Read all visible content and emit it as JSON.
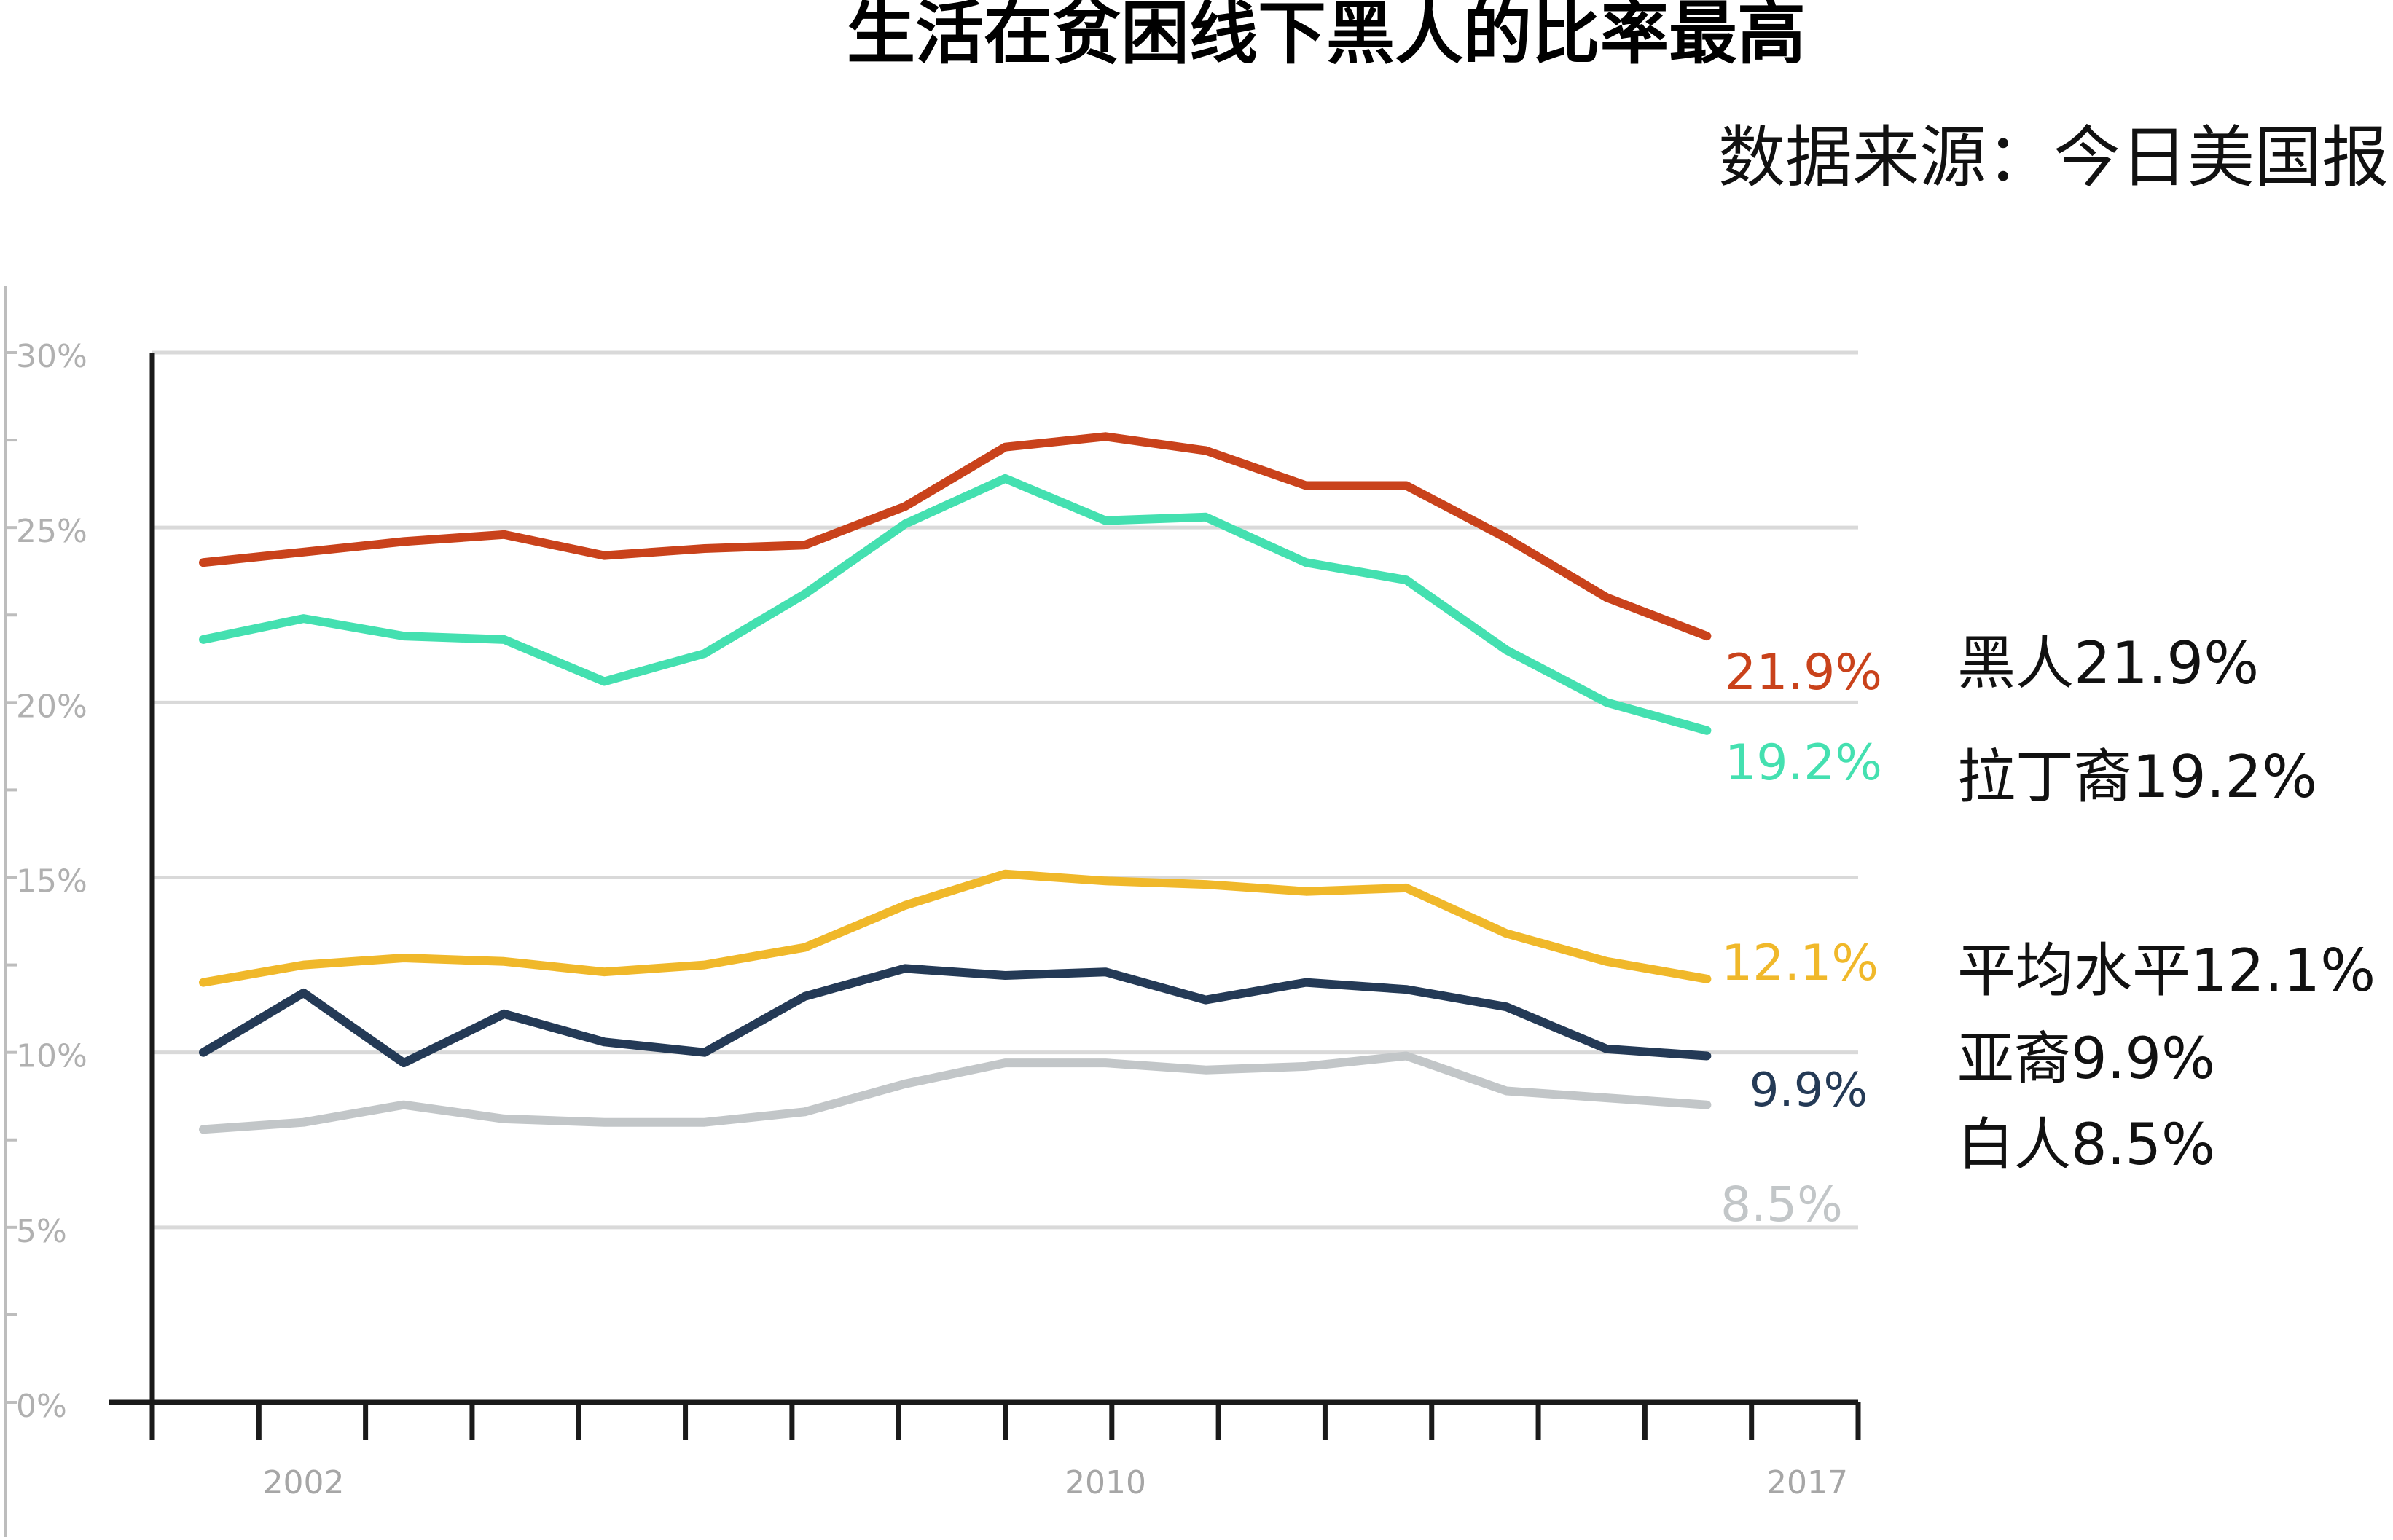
{
  "header": {
    "title": "生活在贫困线下黑人的比率最高",
    "source": "数据来源：今日美国报"
  },
  "chart_data": {
    "type": "line",
    "title": "生活在贫困线下黑人的比率最高",
    "subtitle": "数据来源：今日美国报",
    "xlabel": "",
    "ylabel": "",
    "x": [
      2001,
      2002,
      2003,
      2004,
      2005,
      2006,
      2007,
      2008,
      2009,
      2010,
      2011,
      2012,
      2013,
      2014,
      2015,
      2016,
      2017
    ],
    "xlim": [
      2001,
      2017
    ],
    "ylim": [
      0,
      30
    ],
    "y_ticks": [
      0,
      5,
      10,
      15,
      20,
      25,
      30
    ],
    "y_tick_labels": [
      "0%",
      "5%",
      "10%",
      "15%",
      "20%",
      "25%",
      "30%"
    ],
    "x_tick_labels": [
      {
        "value": 2002,
        "label": "2002"
      },
      {
        "value": 2010,
        "label": "2010"
      },
      {
        "value": 2017,
        "label": "2017"
      }
    ],
    "grid": true,
    "legend": "none",
    "series": [
      {
        "color": "#c9421b",
        "values": [
          24.0,
          24.3,
          24.6,
          24.8,
          24.2,
          24.4,
          24.5,
          25.6,
          27.3,
          27.6,
          27.2,
          26.2,
          26.2,
          24.7,
          23.0,
          21.9,
          21.9
        ],
        "end_label": "21.9%",
        "annotation": "黑人21.9%"
      },
      {
        "color": "#44e0b0",
        "values": [
          21.8,
          22.4,
          21.9,
          21.8,
          20.6,
          21.4,
          23.1,
          25.1,
          26.4,
          25.2,
          25.3,
          24.0,
          23.5,
          21.5,
          20.0,
          19.2,
          19.2
        ],
        "end_label": "19.2%",
        "annotation": "拉丁裔19.2%"
      },
      {
        "color": "#f0b82a",
        "values": [
          12.0,
          12.5,
          12.7,
          12.6,
          12.3,
          12.5,
          13.0,
          14.2,
          15.1,
          14.9,
          14.8,
          14.6,
          14.7,
          13.4,
          12.6,
          12.1,
          12.1
        ],
        "end_label": "12.1%",
        "annotation": "平均水平12.1%"
      },
      {
        "color": "#243a56",
        "values": [
          10.0,
          11.7,
          9.7,
          11.1,
          10.3,
          10.0,
          11.6,
          12.4,
          12.2,
          12.3,
          11.5,
          12.0,
          11.8,
          11.3,
          10.1,
          9.9,
          9.9
        ],
        "end_label": "9.9%",
        "annotation": "亚裔9.9%"
      },
      {
        "color": "#c2c6c8",
        "values": [
          7.8,
          8.0,
          8.5,
          8.1,
          8.0,
          8.0,
          8.3,
          9.1,
          9.7,
          9.7,
          9.5,
          9.6,
          9.9,
          8.9,
          8.7,
          8.5,
          8.5
        ],
        "end_label": "8.5%",
        "annotation": "白人8.5%"
      }
    ]
  }
}
